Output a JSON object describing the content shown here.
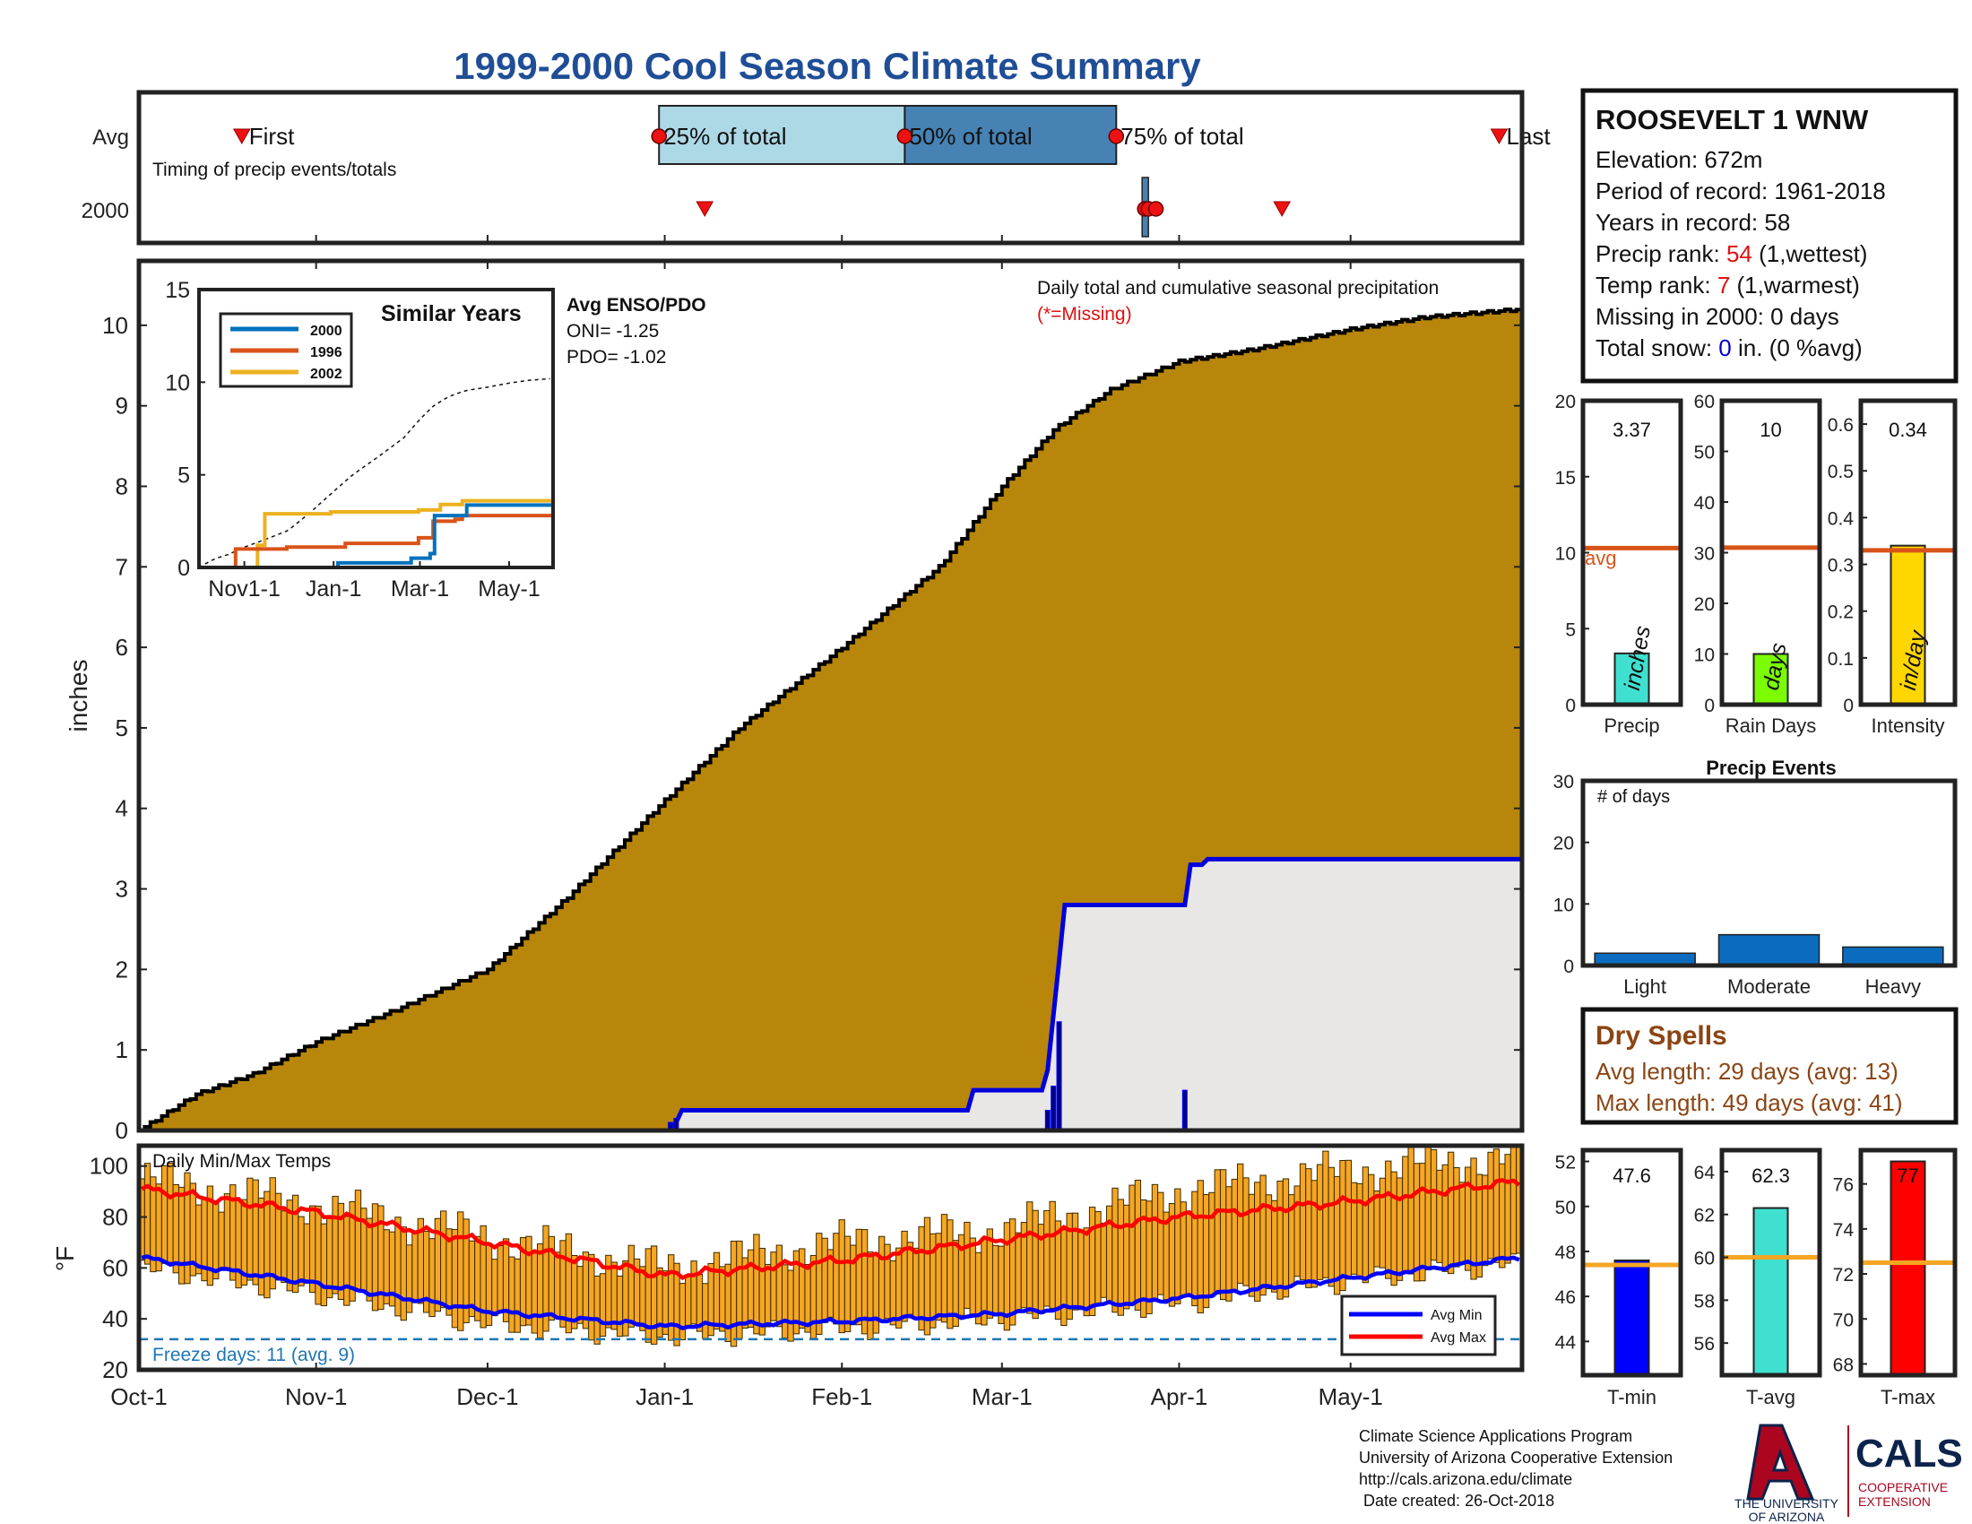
{
  "title": "1999-2000 Cool Season Climate Summary",
  "colors": {
    "title": "#1f4e96",
    "precip_fill": "#b8860b",
    "cumulative_fill": "#e8e7e6",
    "current_line": "#0000dd",
    "avg_line_orange": "#d95319",
    "tavg_line": "#f5a623",
    "bar_blue": "#0b6cbf",
    "marker_red": "#ee1111",
    "timing_q1": "#add8e6",
    "timing_q2": "#4682b4",
    "temp_bar": "#f5a623",
    "brown_text": "#8b4513",
    "ua_blue": "#0c234b",
    "ua_red": "#ab0520"
  },
  "timing": {
    "avg_label": "Avg",
    "year_label": "2000",
    "note": "Timing of precip events/totals",
    "first_label": "First",
    "q25_label": "25% of total",
    "q50_label": "50% of total",
    "q75_label": "75% of total",
    "last_label": "Last",
    "avg_days": {
      "first": 18,
      "q25": 91,
      "q50": 134,
      "q75": 171,
      "last": 238
    },
    "year_days": {
      "first": 99,
      "q25": 176,
      "q50": 176,
      "q75": 177,
      "last": 200
    }
  },
  "main": {
    "ylabel": "inches",
    "title_line": "Daily total and cumulative seasonal precipitation",
    "missing_note": "(*=Missing)",
    "yticks": [
      "0",
      "1",
      "2",
      "3",
      "4",
      "5",
      "6",
      "7",
      "8",
      "9",
      "10"
    ],
    "xticks": [
      {
        "label": "Oct-1",
        "day": 0
      },
      {
        "label": "Nov-1",
        "day": 31
      },
      {
        "label": "Dec-1",
        "day": 61
      },
      {
        "label": "Jan-1",
        "day": 92
      },
      {
        "label": "Feb-1",
        "day": 123
      },
      {
        "label": "Mar-1",
        "day": 151
      },
      {
        "label": "Apr-1",
        "day": 182
      },
      {
        "label": "May-1",
        "day": 212
      }
    ]
  },
  "enso": {
    "heading": "Avg ENSO/PDO",
    "oni": "ONI= -1.25",
    "pdo": "PDO= -1.02"
  },
  "similar": {
    "title": "Similar Years",
    "yticks": [
      "0",
      "5",
      "10",
      "15"
    ],
    "xticks": [
      "Nov1-1",
      "Jan-1",
      "Mar-1",
      "May-1"
    ],
    "legend": [
      {
        "label": "2000",
        "color": "#0072bd"
      },
      {
        "label": "1996",
        "color": "#d95319"
      },
      {
        "label": "2002",
        "color": "#edb120"
      }
    ]
  },
  "station": {
    "name": "ROOSEVELT 1 WNW",
    "elevation": "Elevation: 672m",
    "period": "Period of record: 1961-2018",
    "years": "Years in record: 58",
    "precip_rank_prefix": "Precip rank: ",
    "precip_rank_value": "54",
    "precip_rank_suffix": " (1,wettest)",
    "temp_rank_prefix": "Temp rank: ",
    "temp_rank_value": "7",
    "temp_rank_suffix": " (1,warmest)",
    "missing": "Missing in 2000: 0 days",
    "snow_prefix": "Total snow: ",
    "snow_value": "0",
    "snow_suffix": " in. (0 %avg)"
  },
  "small_bars": {
    "avg_label": "avg",
    "precip": {
      "label": "Precip",
      "unit": "inches",
      "value_text": "3.37",
      "value": 3.37,
      "avg": 10.3,
      "ymax": 20,
      "yticks": [
        "0",
        "5",
        "10",
        "15",
        "20"
      ],
      "color": "#40e0d0"
    },
    "rain_days": {
      "label": "Rain Days",
      "unit": "days",
      "value_text": "10",
      "value": 10,
      "avg": 31,
      "ymax": 60,
      "yticks": [
        "0",
        "10",
        "20",
        "30",
        "40",
        "50",
        "60"
      ],
      "color": "#7cfc00"
    },
    "intensity": {
      "label": "Intensity",
      "unit": "in/day",
      "value_text": "0.34",
      "value": 0.34,
      "avg": 0.33,
      "ymax": 0.65,
      "yticks": [
        "0",
        "0.1",
        "0.2",
        "0.3",
        "0.4",
        "0.5",
        "0.6"
      ],
      "color": "#ffd700"
    }
  },
  "events": {
    "title": "Precip Events",
    "ylabel": "# of days",
    "yticks": [
      "0",
      "10",
      "20",
      "30"
    ],
    "categories": [
      "Light",
      "Moderate",
      "Heavy"
    ],
    "values": [
      2,
      5,
      3
    ]
  },
  "dry_spells": {
    "title": "Dry Spells",
    "avg_line": "Avg length: 29 days (avg: 13)",
    "max_line": "Max length: 49 days (avg: 41)"
  },
  "temps": {
    "title": "Daily Min/Max Temps",
    "ylabel": "°F",
    "yticks": [
      "20",
      "40",
      "60",
      "80",
      "100"
    ],
    "freeze": "Freeze days: 11 (avg. 9)",
    "legend_min": "Avg Min",
    "legend_max": "Avg Max"
  },
  "temp_bars": {
    "tmin": {
      "label": "T-min",
      "value_text": "47.6",
      "value": 47.6,
      "avg": 47.4,
      "ymin": 42.5,
      "ymax": 52.5,
      "ticks": [
        44,
        46,
        48,
        50,
        52
      ],
      "color": "#0000ff"
    },
    "tavg": {
      "label": "T-avg",
      "value_text": "62.3",
      "value": 62.3,
      "avg": 60,
      "ymin": 54.5,
      "ymax": 65,
      "ticks": [
        56,
        58,
        60,
        62,
        64
      ],
      "color": "#40e0d0"
    },
    "tmax": {
      "label": "T-max",
      "value_text": "77",
      "value": 77,
      "avg": 72.5,
      "ymin": 67.5,
      "ymax": 77.5,
      "ticks": [
        68,
        70,
        72,
        74,
        76
      ],
      "color": "#ff0000"
    }
  },
  "footer": {
    "line1": "Climate Science Applications Program",
    "line2": "University of Arizona Cooperative Extension",
    "line3": "http://cals.arizona.edu/climate",
    "line4": " Date created: 26-Oct-2018",
    "ua_line1": "THE UNIVERSITY",
    "ua_line2": "OF ARIZONA",
    "cals": "CALS",
    "coop1": "COOPERATIVE",
    "coop2": "EXTENSION"
  },
  "chart_data": [
    {
      "type": "area",
      "title": "Daily total and cumulative seasonal precipitation",
      "ylabel": "inches",
      "ylim": [
        0,
        10.8
      ],
      "x_units": "days since Oct-1",
      "series": [
        {
          "name": "avg cumulative",
          "x": [
            0,
            10,
            20,
            31,
            45,
            61,
            75,
            92,
            105,
            123,
            140,
            151,
            160,
            170,
            182,
            195,
            212,
            225,
            242
          ],
          "values": [
            0.0,
            0.45,
            0.7,
            1.1,
            1.5,
            2.0,
            2.9,
            4.1,
            5.0,
            6.0,
            7.0,
            8.0,
            8.7,
            9.2,
            9.55,
            9.7,
            9.95,
            10.1,
            10.2
          ]
        },
        {
          "name": "2000 cumulative",
          "x": [
            0,
            93,
            94,
            95,
            145,
            146,
            158,
            159,
            161,
            162,
            183,
            184,
            186,
            187,
            242
          ],
          "values": [
            0.0,
            0.0,
            0.1,
            0.25,
            0.25,
            0.5,
            0.5,
            0.75,
            2.1,
            2.8,
            2.8,
            3.3,
            3.3,
            3.37,
            3.37
          ]
        },
        {
          "name": "2000 daily",
          "x": [
            93,
            94,
            159,
            160,
            161,
            183
          ],
          "values": [
            0.1,
            0.15,
            0.25,
            0.55,
            1.35,
            0.5
          ]
        }
      ]
    },
    {
      "type": "line",
      "title": "Similar Years",
      "x_units": "days since Oct-1",
      "ylim": [
        0,
        15
      ],
      "series": [
        {
          "name": "2000",
          "x": [
            0,
            95,
            145,
            158,
            161,
            183,
            242
          ],
          "values": [
            0,
            0.25,
            0.5,
            0.75,
            2.8,
            3.37,
            3.37
          ]
        },
        {
          "name": "1996",
          "x": [
            0,
            25,
            60,
            100,
            150,
            160,
            175,
            180,
            242
          ],
          "values": [
            0,
            1.0,
            1.1,
            1.3,
            1.6,
            2.5,
            2.6,
            2.8,
            2.8
          ]
        },
        {
          "name": "2002",
          "x": [
            0,
            40,
            45,
            90,
            150,
            165,
            180,
            242
          ],
          "values": [
            0,
            1.2,
            2.9,
            3.0,
            3.1,
            3.4,
            3.6,
            3.6
          ]
        }
      ]
    },
    {
      "type": "bar",
      "title": "Daily Min/Max Temps",
      "ylabel": "°F",
      "ylim": [
        20,
        108
      ],
      "x_units": "days since Oct-1",
      "series": [
        {
          "name": "Avg Max",
          "x": [
            0,
            30,
            61,
            92,
            123,
            151,
            182,
            212,
            242
          ],
          "values": [
            91,
            82,
            70,
            57,
            63,
            71,
            80,
            86,
            94
          ]
        },
        {
          "name": "Avg Min",
          "x": [
            0,
            30,
            61,
            92,
            123,
            151,
            182,
            212,
            242
          ],
          "values": [
            64,
            54,
            43,
            37,
            39,
            42,
            48,
            56,
            64
          ]
        },
        {
          "name": "daily max",
          "x": [
            0,
            30,
            61,
            92,
            123,
            151,
            182,
            212,
            242
          ],
          "values": [
            95,
            85,
            72,
            60,
            70,
            75,
            90,
            98,
            104
          ]
        },
        {
          "name": "daily min",
          "x": [
            0,
            30,
            61,
            92,
            123,
            151,
            182,
            212,
            242
          ],
          "values": [
            60,
            50,
            38,
            33,
            36,
            40,
            46,
            55,
            62
          ]
        }
      ]
    },
    {
      "type": "bar",
      "title": "Precip Events",
      "categories": [
        "Light",
        "Moderate",
        "Heavy"
      ],
      "values": [
        2,
        5,
        3
      ],
      "ylim": [
        0,
        30
      ]
    }
  ]
}
